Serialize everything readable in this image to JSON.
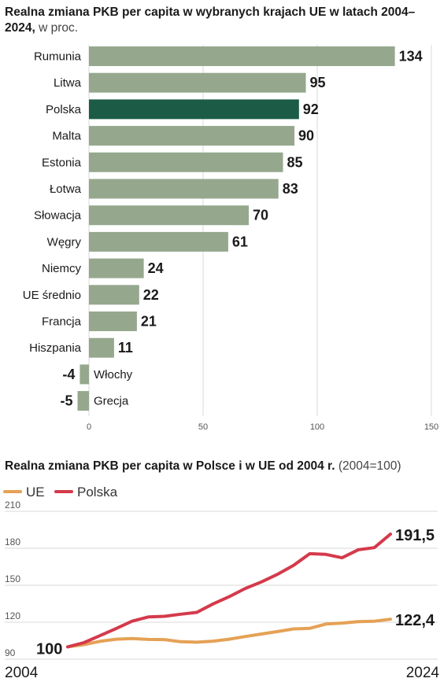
{
  "charts_titles": {
    "chart1": {
      "bold": "Realna zmiana PKB per capita w wybranych krajach UE w latach 2004–2024,",
      "light": " w proc."
    },
    "chart2": {
      "bold": "Realna zmiana PKB per capita w Polsce i w UE od 2004 r.",
      "light": " (2004=100)"
    }
  },
  "colors": {
    "bar": "#95a88e",
    "highlight": "#1c5c47",
    "ue": "#e5a155",
    "polska": "#d43a4b",
    "grid": "#d9d9d9"
  },
  "chart_data": [
    {
      "type": "bar",
      "orientation": "horizontal",
      "title": "Realna zmiana PKB per capita w wybranych krajach UE w latach 2004–2024, w proc.",
      "categories": [
        "Rumunia",
        "Litwa",
        "Polska",
        "Malta",
        "Estonia",
        "Łotwa",
        "Słowacja",
        "Węgry",
        "Niemcy",
        "UE średnio",
        "Francja",
        "Hiszpania",
        "Włochy",
        "Grecja"
      ],
      "values": [
        134,
        95,
        92,
        90,
        85,
        83,
        70,
        61,
        24,
        22,
        21,
        11,
        -4,
        -5
      ],
      "highlight": "Polska",
      "xlim": [
        0,
        150
      ],
      "xticks": [
        0,
        50,
        100,
        150
      ],
      "grid": true
    },
    {
      "type": "line",
      "title": "Realna zmiana PKB per capita w Polsce i w UE od 2004 r. (2004=100)",
      "x": [
        2004,
        2005,
        2006,
        2007,
        2008,
        2009,
        2010,
        2011,
        2012,
        2013,
        2014,
        2015,
        2016,
        2017,
        2018,
        2019,
        2020,
        2021,
        2022,
        2023,
        2024
      ],
      "series": [
        {
          "name": "UE",
          "values": [
            100,
            101.8,
            104.5,
            106.2,
            106.7,
            106.0,
            105.9,
            104.2,
            103.8,
            104.6,
            106.2,
            108.4,
            110.4,
            112.4,
            114.6,
            115.0,
            118.5,
            119.3,
            120.5,
            120.8,
            122.4
          ]
        },
        {
          "name": "Polska",
          "values": [
            100,
            103.4,
            109.1,
            114.8,
            120.9,
            124.3,
            124.8,
            126.5,
            128.0,
            134.8,
            140.7,
            147.4,
            152.7,
            158.9,
            166.2,
            175.6,
            175.0,
            172.3,
            178.8,
            180.5,
            191.5
          ]
        }
      ],
      "ylim": [
        90,
        210
      ],
      "yticks": [
        90,
        120,
        150,
        180,
        210
      ],
      "start_label": "100",
      "end_labels": {
        "UE": "122,4",
        "Polska": "191,5"
      },
      "x_labels": [
        "2004",
        "2024"
      ],
      "legend_position": "top-left",
      "grid": true
    }
  ]
}
